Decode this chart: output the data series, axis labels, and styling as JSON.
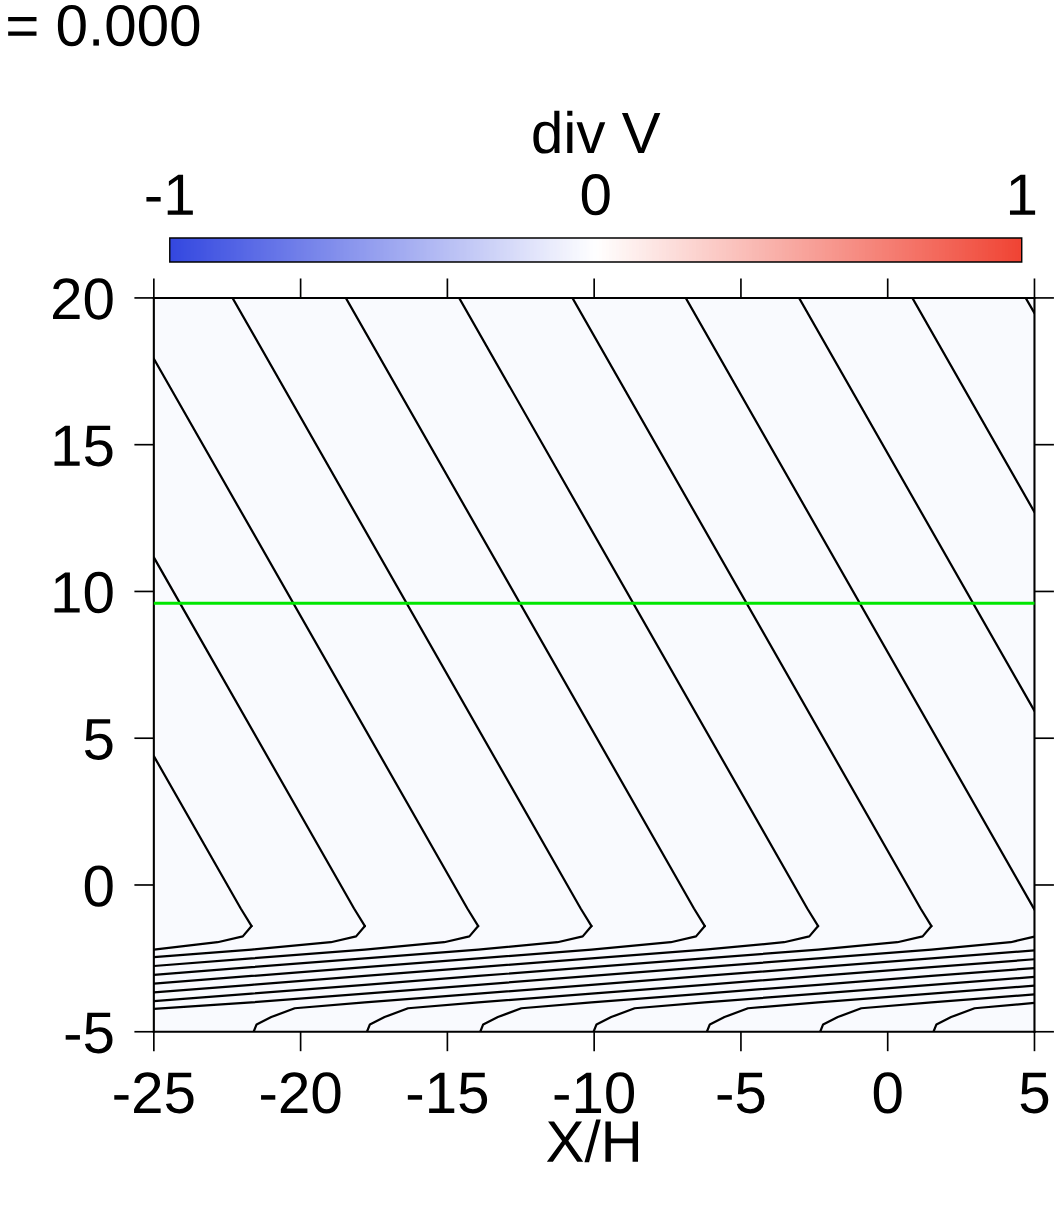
{
  "chart_data": {
    "type": "heatmap",
    "xlabel": "X/H",
    "clabel": "div V",
    "annotations": [
      "= 0.000"
    ],
    "cells": [
      [
        -0.03
      ]
    ],
    "clim": [
      -1,
      1
    ],
    "cticks": [
      -1,
      0,
      1
    ],
    "xlim": [
      -25,
      5
    ],
    "ylim": [
      -5,
      20
    ],
    "xticks": [
      -25,
      -20,
      -15,
      -10,
      -5,
      0,
      5
    ],
    "yticks": [
      -5,
      0,
      5,
      10,
      15,
      20
    ],
    "ref_lines": [
      {
        "axis": "y",
        "value": 9.6,
        "color": "#00e600"
      }
    ],
    "series": [
      {
        "type": "line",
        "color": "#000000",
        "x": [
          -25,
          -22.04,
          -21.67
        ],
        "values": [
          4.39,
          -0.8,
          -1.4
        ]
      },
      {
        "type": "line",
        "color": "#000000",
        "x": [
          -21.67,
          -21.97,
          -22.83,
          -25
        ],
        "values": [
          -1.4,
          -1.75,
          -1.95,
          -2.2
        ]
      },
      {
        "type": "line",
        "color": "#000000",
        "x": [
          -25,
          -18.18,
          -17.81
        ],
        "values": [
          11.16,
          -0.8,
          -1.4
        ]
      },
      {
        "type": "line",
        "color": "#000000",
        "x": [
          -17.81,
          -18.11,
          -18.97,
          -21.67,
          -25
        ],
        "values": [
          -1.4,
          -1.75,
          -1.95,
          -2.2,
          -2.46
        ]
      },
      {
        "type": "line",
        "color": "#000000",
        "x": [
          -25,
          -14.32,
          -13.95
        ],
        "values": [
          17.93,
          -0.8,
          -1.4
        ]
      },
      {
        "type": "line",
        "color": "#000000",
        "x": [
          -13.95,
          -14.25,
          -15.11,
          -17.81,
          -21.67,
          -25
        ],
        "values": [
          -1.4,
          -1.75,
          -1.95,
          -2.2,
          -2.5,
          -2.76
        ]
      },
      {
        "type": "line",
        "color": "#000000",
        "x": [
          -22.32,
          -10.46,
          -10.09
        ],
        "values": [
          20,
          -0.8,
          -1.4
        ]
      },
      {
        "type": "line",
        "color": "#000000",
        "x": [
          -10.09,
          -10.39,
          -11.25,
          -13.95,
          -17.81,
          -21.67,
          -25
        ],
        "values": [
          -1.4,
          -1.75,
          -1.95,
          -2.2,
          -2.5,
          -2.8,
          -3.06
        ]
      },
      {
        "type": "line",
        "color": "#000000",
        "x": [
          -18.46,
          -6.6,
          -6.23
        ],
        "values": [
          20,
          -0.8,
          -1.4
        ]
      },
      {
        "type": "line",
        "color": "#000000",
        "x": [
          -6.23,
          -6.53,
          -7.39,
          -10.09,
          -13.95,
          -17.81,
          -21.67,
          -25
        ],
        "values": [
          -1.4,
          -1.75,
          -1.95,
          -2.2,
          -2.5,
          -2.8,
          -3.1,
          -3.36
        ]
      },
      {
        "type": "line",
        "color": "#000000",
        "x": [
          -14.6,
          -2.74,
          -2.37
        ],
        "values": [
          20,
          -0.8,
          -1.4
        ]
      },
      {
        "type": "line",
        "color": "#000000",
        "x": [
          -2.37,
          -2.67,
          -3.53,
          -6.23,
          -10.09,
          -13.95,
          -17.81,
          -21.67,
          -25
        ],
        "values": [
          -1.4,
          -1.75,
          -1.95,
          -2.2,
          -2.5,
          -2.8,
          -3.1,
          -3.4,
          -3.66
        ]
      },
      {
        "type": "line",
        "color": "#000000",
        "x": [
          -10.74,
          1.12,
          1.49
        ],
        "values": [
          20,
          -0.8,
          -1.4
        ]
      },
      {
        "type": "line",
        "color": "#000000",
        "x": [
          1.49,
          1.19,
          0.33,
          -2.37,
          -6.23,
          -10.09,
          -13.95,
          -17.81,
          -21.67,
          -25
        ],
        "values": [
          -1.4,
          -1.75,
          -1.95,
          -2.2,
          -2.5,
          -2.8,
          -3.1,
          -3.4,
          -3.7,
          -3.96
        ]
      },
      {
        "type": "line",
        "color": "#000000",
        "x": [
          -6.88,
          5
        ],
        "values": [
          20,
          -0.84
        ]
      },
      {
        "type": "line",
        "color": "#000000",
        "x": [
          5,
          4.19,
          1.49,
          -2.37,
          -6.23,
          -10.09,
          -13.95,
          -17.81,
          -21.67,
          -25
        ],
        "values": [
          -1.76,
          -1.95,
          -2.2,
          -2.5,
          -2.8,
          -3.1,
          -3.4,
          -3.7,
          -4.0,
          -4.22
        ]
      },
      {
        "type": "line",
        "color": "#000000",
        "x": [
          -3.02,
          5
        ],
        "values": [
          20,
          5.93
        ]
      },
      {
        "type": "line",
        "color": "#000000",
        "x": [
          5,
          1.49,
          -2.37,
          -6.23,
          -10.09,
          -13.95,
          -17.81,
          -20.2,
          -21.0,
          -21.5,
          -21.6
        ],
        "values": [
          -2.23,
          -2.5,
          -2.8,
          -3.1,
          -3.4,
          -3.7,
          -4.0,
          -4.2,
          -4.5,
          -4.75,
          -5
        ]
      },
      {
        "type": "line",
        "color": "#000000",
        "x": [
          0.84,
          5
        ],
        "values": [
          20,
          12.7
        ]
      },
      {
        "type": "line",
        "color": "#000000",
        "x": [
          5,
          1.49,
          -2.37,
          -6.23,
          -10.09,
          -13.95,
          -16.34,
          -17.14,
          -17.64,
          -17.74
        ],
        "values": [
          -2.53,
          -2.8,
          -3.1,
          -3.4,
          -3.7,
          -4.0,
          -4.2,
          -4.5,
          -4.75,
          -5
        ]
      },
      {
        "type": "line",
        "color": "#000000",
        "x": [
          4.7,
          5
        ],
        "values": [
          20,
          19.48
        ]
      },
      {
        "type": "line",
        "color": "#000000",
        "x": [
          5,
          1.49,
          -2.37,
          -6.23,
          -10.09,
          -12.48,
          -13.28,
          -13.78,
          -13.88
        ],
        "values": [
          -2.83,
          -3.1,
          -3.4,
          -3.7,
          -4.0,
          -4.2,
          -4.5,
          -4.75,
          -5
        ]
      },
      {
        "type": "line",
        "color": "#000000",
        "x": [
          5,
          1.49,
          -2.37,
          -6.23,
          -8.62,
          -9.42,
          -9.92,
          -10.02
        ],
        "values": [
          -3.13,
          -3.4,
          -3.7,
          -4.0,
          -4.2,
          -4.5,
          -4.75,
          -5
        ]
      },
      {
        "type": "line",
        "color": "#000000",
        "x": [
          5,
          1.49,
          -2.37,
          -4.76,
          -5.56,
          -6.06,
          -6.16
        ],
        "values": [
          -3.43,
          -3.7,
          -4.0,
          -4.2,
          -4.5,
          -4.75,
          -5
        ]
      },
      {
        "type": "line",
        "color": "#000000",
        "x": [
          5,
          1.49,
          -0.9,
          -1.7,
          -2.2,
          -2.3
        ],
        "values": [
          -3.73,
          -4.0,
          -4.2,
          -4.5,
          -4.75,
          -5
        ]
      },
      {
        "type": "line",
        "color": "#000000",
        "x": [
          5,
          2.96,
          2.16,
          1.66,
          1.56
        ],
        "values": [
          -4.02,
          -4.2,
          -4.5,
          -4.75,
          -5
        ]
      }
    ]
  }
}
